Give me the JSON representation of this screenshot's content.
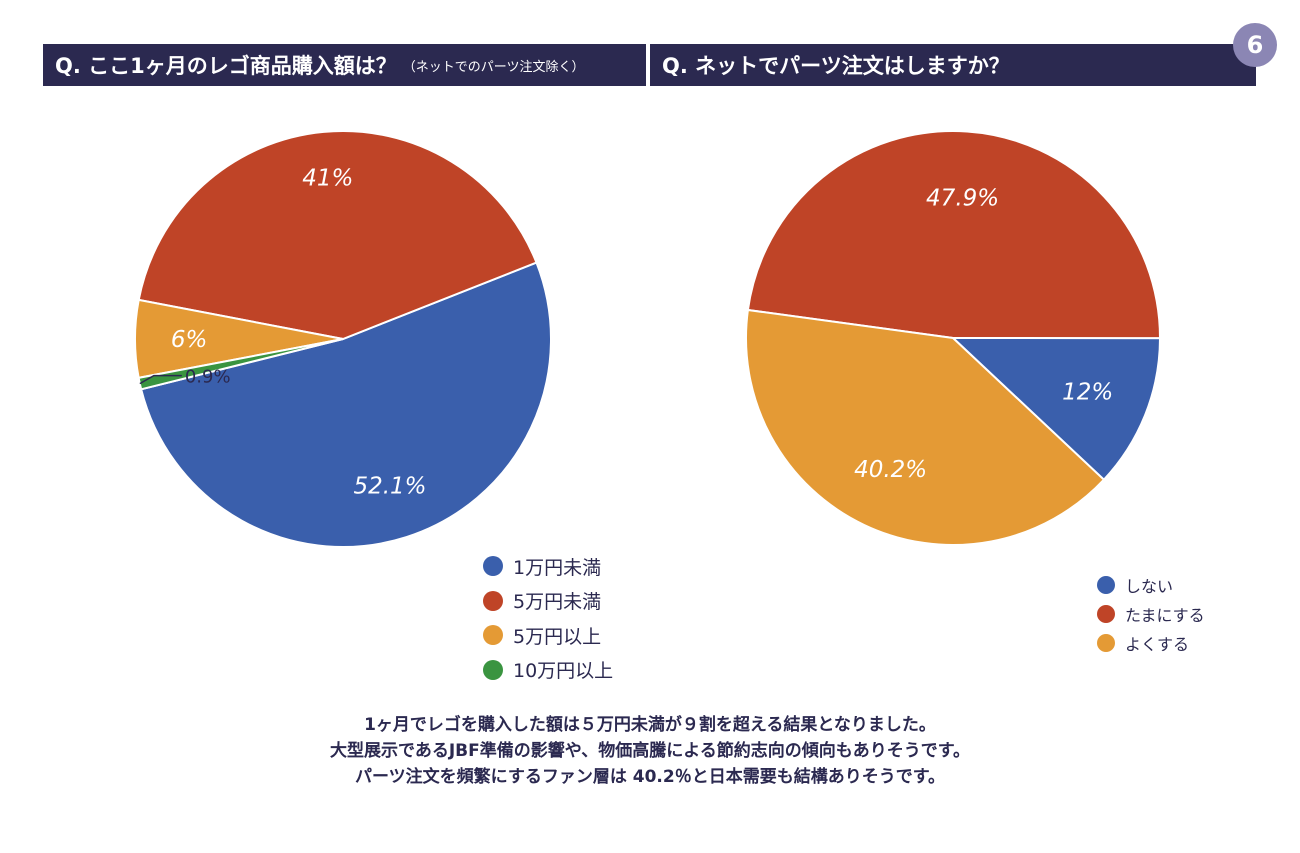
{
  "page_number": "6",
  "questions": {
    "q1_main": "Q. ここ1ヶ月のレゴ商品購入額は？",
    "q1_note": "（ネットでのパーツ注文除く）",
    "q2": "Q. ネットでパーツ注文はしますか？"
  },
  "colors": {
    "blue": "#3a5fac",
    "red": "#bf4427",
    "orange": "#e49a35",
    "green": "#3a9440",
    "navy": "#2b2950"
  },
  "chart_data": [
    {
      "type": "pie",
      "title": "Q. ここ1ヶ月のレゴ商品購入額は？（ネットでのパーツ注文除く）",
      "categories": [
        "1万円未満",
        "5万円未満",
        "5万円以上",
        "10万円以上"
      ],
      "values": [
        52.1,
        41,
        6,
        0.9
      ],
      "labels": [
        "52.1%",
        "41%",
        "6%",
        "0.9%"
      ],
      "colors": [
        "#3a5fac",
        "#bf4427",
        "#e49a35",
        "#3a9440"
      ],
      "legend_position": "bottom-right"
    },
    {
      "type": "pie",
      "title": "Q. ネットでパーツ注文はしますか？",
      "categories": [
        "しない",
        "たまにする",
        "よくする"
      ],
      "values": [
        12,
        47.9,
        40.2
      ],
      "labels": [
        "12%",
        "47.9%",
        "40.2%"
      ],
      "colors": [
        "#3a5fac",
        "#bf4427",
        "#e49a35"
      ],
      "legend_position": "bottom-right"
    }
  ],
  "summary": [
    "1ヶ月でレゴを購入した額は５万円未満が９割を超える結果となりました。",
    "大型展示であるJBF準備の影響や、物価高騰による節約志向の傾向もありそうです。",
    "パーツ注文を頻繁にするファン層は 40.2％と日本需要も結構ありそうです。"
  ]
}
